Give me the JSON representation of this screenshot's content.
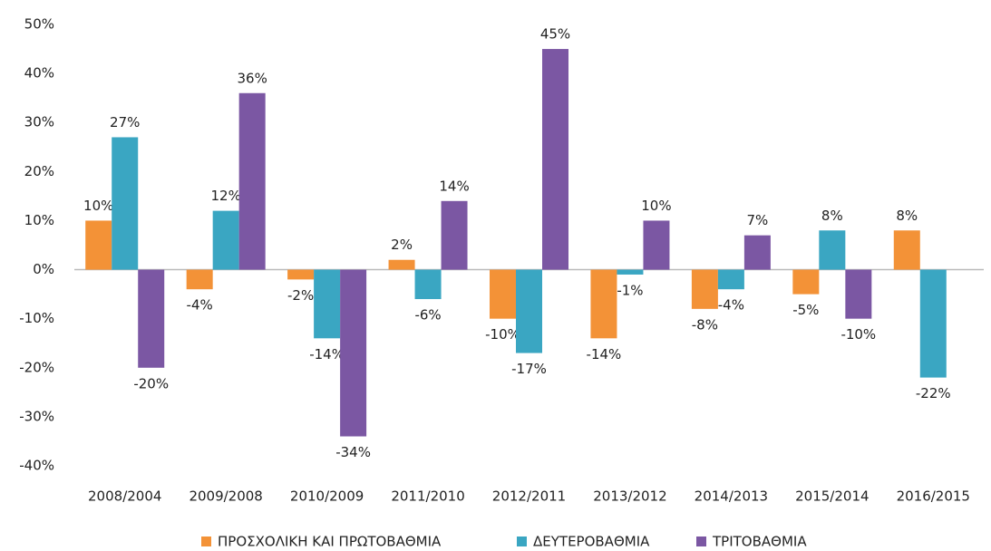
{
  "chart_data": {
    "type": "bar",
    "categories": [
      "2008/2004",
      "2009/2008",
      "2010/2009",
      "2011/2010",
      "2012/2011",
      "2013/2012",
      "2014/2013",
      "2015/2014",
      "2016/2015"
    ],
    "series": [
      {
        "name": "ΠΡΟΣΧΟΛΙΚΗ ΚΑΙ ΠΡΩΤΟΒΑΘΜΙΑ",
        "color": "#f39237",
        "values": [
          10,
          -4,
          -2,
          2,
          -10,
          -14,
          -8,
          -5,
          8
        ],
        "value_labels": [
          "10%",
          "-4%",
          "-2%",
          "2%",
          "-10%",
          "-14%",
          "-8%",
          "-5%",
          "8%"
        ]
      },
      {
        "name": "ΔΕΥΤΕΡΟΒΑΘΜΙΑ",
        "color": "#3aa6c2",
        "values": [
          27,
          12,
          -14,
          -6,
          -17,
          -1,
          -4,
          8,
          -22
        ],
        "value_labels": [
          "27%",
          "12%",
          "-14%",
          "-6%",
          "-17%",
          "-1%",
          "-4%",
          "8%",
          "-22%"
        ]
      },
      {
        "name": "ΤΡΙΤΟΒΑΘΜΙΑ",
        "color": "#7b57a3",
        "values": [
          -20,
          36,
          -34,
          14,
          45,
          10,
          7,
          -10,
          null
        ],
        "value_labels": [
          "-20%",
          "36%",
          "-34%",
          "14%",
          "45%",
          "10%",
          "7%",
          "-10%",
          null
        ]
      }
    ],
    "ylim": [
      -40,
      50
    ],
    "yticks": [
      {
        "value": -40,
        "label": "-40%"
      },
      {
        "value": -30,
        "label": "-30%"
      },
      {
        "value": -20,
        "label": "-20%"
      },
      {
        "value": -10,
        "label": "-10%"
      },
      {
        "value": 0,
        "label": "0%"
      },
      {
        "value": 10,
        "label": "10%"
      },
      {
        "value": 20,
        "label": "20%"
      },
      {
        "value": 30,
        "label": "30%"
      },
      {
        "value": 40,
        "label": "40%"
      },
      {
        "value": 50,
        "label": "50%"
      }
    ],
    "legend": "bottom",
    "grid": false
  }
}
